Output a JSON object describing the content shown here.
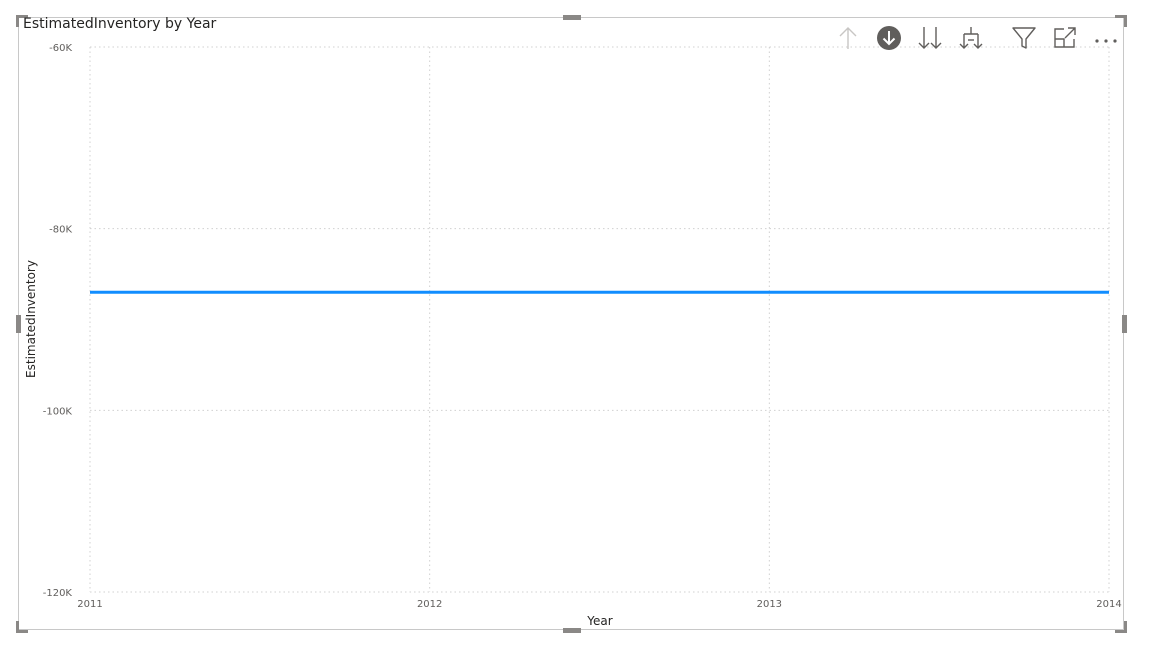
{
  "visual": {
    "title": "EstimatedInventory by Year"
  },
  "toolbar": {
    "icons": [
      "drill-up-icon",
      "drill-down-toggle-icon",
      "go-to-next-level-icon",
      "expand-all-down-icon",
      "filter-icon",
      "focus-mode-icon",
      "more-options-icon"
    ]
  },
  "colors": {
    "series": "#118DFF",
    "grid": "#d0d0d0",
    "frame": "#c8c8c8"
  },
  "chart_data": {
    "type": "line",
    "title": "EstimatedInventory by Year",
    "xlabel": "Year",
    "ylabel": "EstimatedInventory",
    "x": [
      "2011",
      "2012",
      "2013",
      "2014"
    ],
    "ylim": [
      -120000,
      -60000
    ],
    "yticks": [
      -60000,
      -80000,
      -100000,
      -120000
    ],
    "ytick_labels": [
      "-60K",
      "-80K",
      "-100K",
      "-120K"
    ],
    "series": [
      {
        "name": "EstimatedInventory",
        "values": [
          -87000,
          -87000,
          -87000,
          -87000
        ]
      }
    ],
    "grid": true
  }
}
